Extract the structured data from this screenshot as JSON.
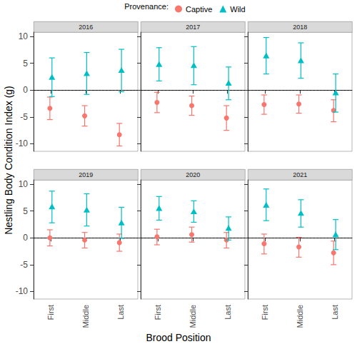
{
  "chart_data": {
    "type": "scatter",
    "x_label": "Brood Position",
    "y_label": "Nestling Body Condition Index (g)",
    "legend_title": "Provenance:",
    "legend": "top",
    "grid": false,
    "categories": [
      "First",
      "Middle",
      "Last"
    ],
    "ylim": [
      -11.4,
      10.8
    ],
    "yticks": [
      -10,
      -5,
      0,
      5,
      10
    ],
    "reference_lines": [
      {
        "y": 0,
        "line_style": "dashed"
      }
    ],
    "series": [
      {
        "name": "Captive",
        "color": "#F8766D",
        "marker": "circle"
      },
      {
        "name": "Wild",
        "color": "#00BFC4",
        "marker": "triangle"
      }
    ],
    "panels": [
      {
        "title": "2016",
        "series": [
          {
            "name": "Captive",
            "values": [
              -3.4,
              -4.8,
              -8.3
            ],
            "error_low": [
              -5.5,
              -6.7,
              -10.4
            ],
            "error_high": [
              -1.3,
              -2.9,
              -6.2
            ]
          },
          {
            "name": "Wild",
            "values": [
              2.4,
              3.1,
              3.7
            ],
            "error_low": [
              -1.2,
              -0.8,
              -0.3
            ],
            "error_high": [
              6.0,
              7.0,
              7.6
            ]
          }
        ]
      },
      {
        "title": "2017",
        "series": [
          {
            "name": "Captive",
            "values": [
              -2.3,
              -2.9,
              -5.2
            ],
            "error_low": [
              -4.2,
              -4.7,
              -7.5
            ],
            "error_high": [
              -0.4,
              -1.1,
              -2.9
            ]
          },
          {
            "name": "Wild",
            "values": [
              4.8,
              4.6,
              1.3
            ],
            "error_low": [
              1.7,
              1.0,
              -1.8
            ],
            "error_high": [
              7.9,
              8.1,
              4.3
            ]
          }
        ]
      },
      {
        "title": "2018",
        "series": [
          {
            "name": "Captive",
            "values": [
              -2.7,
              -2.6,
              -3.8
            ],
            "error_low": [
              -4.5,
              -4.3,
              -5.9
            ],
            "error_high": [
              -0.9,
              -0.9,
              -1.8
            ]
          },
          {
            "name": "Wild",
            "values": [
              6.4,
              5.5,
              -0.5
            ],
            "error_low": [
              3.0,
              2.2,
              -4.1
            ],
            "error_high": [
              9.8,
              8.8,
              3.0
            ]
          }
        ]
      },
      {
        "title": "2019",
        "series": [
          {
            "name": "Captive",
            "values": [
              0.0,
              -0.4,
              -0.9
            ],
            "error_low": [
              -1.5,
              -1.9,
              -2.5
            ],
            "error_high": [
              1.5,
              1.0,
              0.7
            ]
          },
          {
            "name": "Wild",
            "values": [
              5.8,
              5.2,
              2.8
            ],
            "error_low": [
              2.8,
              2.2,
              -0.1
            ],
            "error_high": [
              8.7,
              8.2,
              5.7
            ]
          }
        ]
      },
      {
        "title": "2020",
        "series": [
          {
            "name": "Captive",
            "values": [
              0.2,
              0.6,
              -0.4
            ],
            "error_low": [
              -1.3,
              -0.8,
              -1.9
            ],
            "error_high": [
              1.6,
              2.0,
              1.0
            ]
          },
          {
            "name": "Wild",
            "values": [
              5.5,
              4.9,
              1.8
            ],
            "error_low": [
              3.3,
              2.9,
              -0.4
            ],
            "error_high": [
              7.7,
              6.9,
              3.9
            ]
          }
        ]
      },
      {
        "title": "2021",
        "series": [
          {
            "name": "Captive",
            "values": [
              -1.1,
              -1.7,
              -2.8
            ],
            "error_low": [
              -3.0,
              -3.6,
              -5.0
            ],
            "error_high": [
              0.7,
              0.1,
              -0.6
            ]
          },
          {
            "name": "Wild",
            "values": [
              6.1,
              4.6,
              0.6
            ],
            "error_low": [
              3.2,
              2.0,
              -2.2
            ],
            "error_high": [
              9.1,
              7.1,
              3.4
            ]
          }
        ]
      }
    ]
  }
}
